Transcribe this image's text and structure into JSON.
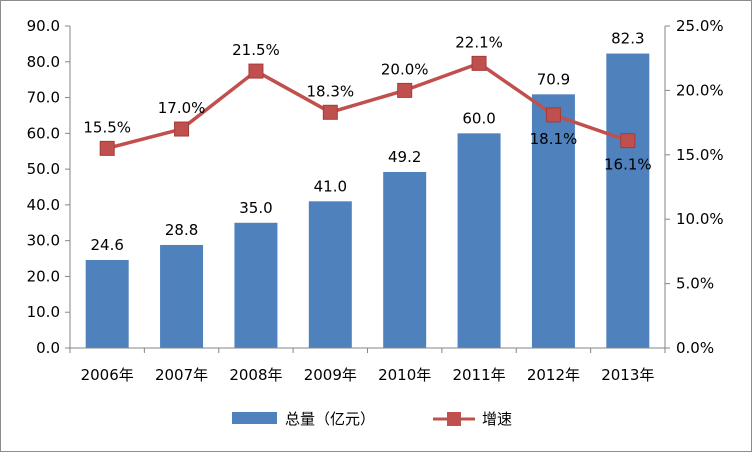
{
  "chart_data": {
    "type": "bar+line",
    "categories": [
      "2006年",
      "2007年",
      "2008年",
      "2009年",
      "2010年",
      "2011年",
      "2012年",
      "2013年"
    ],
    "series": [
      {
        "name": "总量（亿元）",
        "type": "bar",
        "axis": "left",
        "color": "#4f81bd",
        "values": [
          24.6,
          28.8,
          35.0,
          41.0,
          49.2,
          60.0,
          70.9,
          82.3
        ],
        "labels": [
          "24.6",
          "28.8",
          "35.0",
          "41.0",
          "49.2",
          "60.0",
          "70.9",
          "82.3"
        ]
      },
      {
        "name": "增速",
        "type": "line",
        "axis": "right",
        "color": "#c0504d",
        "values": [
          15.5,
          17.0,
          21.5,
          18.3,
          20.0,
          22.1,
          18.1,
          16.1
        ],
        "labels": [
          "15.5%",
          "17.0%",
          "21.5%",
          "18.3%",
          "20.0%",
          "22.1%",
          "18.1%",
          "16.1%"
        ]
      }
    ],
    "y_left": {
      "ylim": [
        0,
        90
      ],
      "ticks": [
        "0.0",
        "10.0",
        "20.0",
        "30.0",
        "40.0",
        "50.0",
        "60.0",
        "70.0",
        "80.0",
        "90.0"
      ]
    },
    "y_right": {
      "ylim": [
        0,
        25
      ],
      "ticks": [
        "0.0%",
        "5.0%",
        "10.0%",
        "15.0%",
        "20.0%",
        "25.0%"
      ]
    },
    "legend": "bottom",
    "grid": false
  }
}
